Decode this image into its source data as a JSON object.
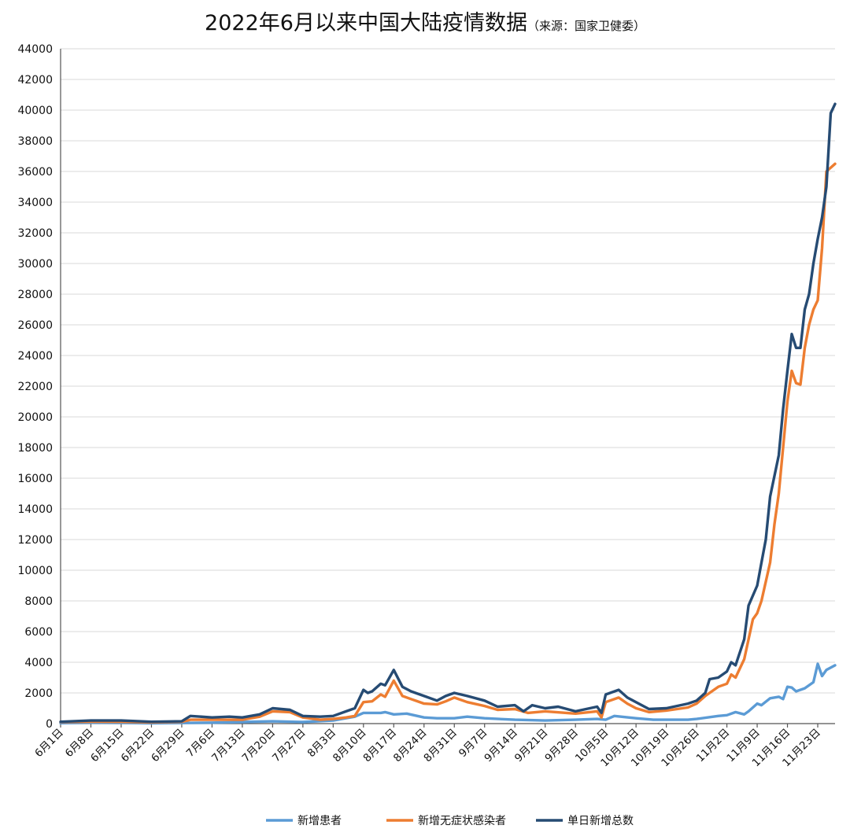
{
  "chart_data": {
    "type": "line",
    "title": "2022年6月以来中国大陆疫情数据",
    "subtitle": "（来源：国家卫健委）",
    "xlabel": "",
    "ylabel": "",
    "ylim": [
      0,
      44000
    ],
    "yticks": [
      0,
      2000,
      4000,
      6000,
      8000,
      10000,
      12000,
      14000,
      16000,
      18000,
      20000,
      22000,
      24000,
      26000,
      28000,
      30000,
      32000,
      34000,
      36000,
      38000,
      40000,
      42000,
      44000
    ],
    "x_start": "2022-06-01",
    "x_end": "2022-11-27",
    "x_tick_labels": [
      "6月1日",
      "6月8日",
      "6月15日",
      "6月22日",
      "6月29日",
      "7月6日",
      "7月13日",
      "7月20日",
      "7月27日",
      "8月3日",
      "8月10日",
      "8月17日",
      "8月24日",
      "8月31日",
      "9月7日",
      "9月14日",
      "9月21日",
      "9月28日",
      "10月5日",
      "10月12日",
      "10月19日",
      "10月26日",
      "11月2日",
      "11月9日",
      "11月16日",
      "11月23日"
    ],
    "grid": true,
    "legend_position": "bottom",
    "series": [
      {
        "name": "新增患者",
        "color": "#5b9bd5",
        "points": [
          [
            "6月1日",
            30
          ],
          [
            "6月8日",
            60
          ],
          [
            "6月15日",
            50
          ],
          [
            "6月22日",
            20
          ],
          [
            "6月29日",
            40
          ],
          [
            "7月6日",
            60
          ],
          [
            "7月13日",
            100
          ],
          [
            "7月20日",
            150
          ],
          [
            "7月27日",
            100
          ],
          [
            "8月3日",
            200
          ],
          [
            "8月5日",
            300
          ],
          [
            "8月8日",
            450
          ],
          [
            "8月10日",
            700
          ],
          [
            "8月14日",
            700
          ],
          [
            "8月15日",
            750
          ],
          [
            "8月17日",
            600
          ],
          [
            "8月20日",
            650
          ],
          [
            "8月24日",
            400
          ],
          [
            "8月27日",
            350
          ],
          [
            "8月31日",
            350
          ],
          [
            "9月3日",
            450
          ],
          [
            "9月7日",
            350
          ],
          [
            "9月14日",
            250
          ],
          [
            "9月21日",
            200
          ],
          [
            "9月28日",
            250
          ],
          [
            "10月3日",
            300
          ],
          [
            "10月5日",
            250
          ],
          [
            "10月7日",
            500
          ],
          [
            "10月12日",
            350
          ],
          [
            "10月16日",
            250
          ],
          [
            "10月19日",
            250
          ],
          [
            "10月24日",
            250
          ],
          [
            "10月26日",
            300
          ],
          [
            "10月31日",
            500
          ],
          [
            "11月2日",
            550
          ],
          [
            "11月4日",
            750
          ],
          [
            "11月6日",
            600
          ],
          [
            "11月7日",
            800
          ],
          [
            "11月9日",
            1300
          ],
          [
            "11月10日",
            1200
          ],
          [
            "11月12日",
            1650
          ],
          [
            "11月14日",
            1750
          ],
          [
            "11月15日",
            1600
          ],
          [
            "11月16日",
            2400
          ],
          [
            "11月17日",
            2350
          ],
          [
            "11月18日",
            2100
          ],
          [
            "11月20日",
            2300
          ],
          [
            "11月22日",
            2700
          ],
          [
            "11月23日",
            3900
          ],
          [
            "11月24日",
            3100
          ],
          [
            "11月25日",
            3500
          ],
          [
            "11月27日",
            3800
          ]
        ]
      },
      {
        "name": "新增无症状感染者",
        "color": "#ed7d31",
        "points": [
          [
            "6月1日",
            100
          ],
          [
            "6月8日",
            130
          ],
          [
            "6月15日",
            120
          ],
          [
            "6月22日",
            80
          ],
          [
            "6月29日",
            120
          ],
          [
            "7月1日",
            250
          ],
          [
            "7月6日",
            250
          ],
          [
            "7月13日",
            250
          ],
          [
            "7月17日",
            450
          ],
          [
            "7月20日",
            800
          ],
          [
            "7月24日",
            750
          ],
          [
            "7月27日",
            400
          ],
          [
            "7月31日",
            250
          ],
          [
            "8月3日",
            300
          ],
          [
            "8月6日",
            400
          ],
          [
            "8月8日",
            500
          ],
          [
            "8月10日",
            1400
          ],
          [
            "8月12日",
            1450
          ],
          [
            "8月14日",
            1900
          ],
          [
            "8月15日",
            1750
          ],
          [
            "8月17日",
            2800
          ],
          [
            "8月19日",
            1800
          ],
          [
            "8月21日",
            1600
          ],
          [
            "8月24日",
            1300
          ],
          [
            "8月27日",
            1250
          ],
          [
            "8月29日",
            1450
          ],
          [
            "8月31日",
            1700
          ],
          [
            "9月3日",
            1400
          ],
          [
            "9月7日",
            1150
          ],
          [
            "9月10日",
            900
          ],
          [
            "9月14日",
            950
          ],
          [
            "9月17日",
            700
          ],
          [
            "9月21日",
            800
          ],
          [
            "9月28日",
            650
          ],
          [
            "10月3日",
            800
          ],
          [
            "10月4日",
            400
          ],
          [
            "10月5日",
            1400
          ],
          [
            "10月8日",
            1700
          ],
          [
            "10月10日",
            1300
          ],
          [
            "10月12日",
            1000
          ],
          [
            "10月15日",
            750
          ],
          [
            "10月19日",
            850
          ],
          [
            "10月24日",
            1050
          ],
          [
            "10月26日",
            1300
          ],
          [
            "10月28日",
            1800
          ],
          [
            "10月31日",
            2400
          ],
          [
            "11月2日",
            2600
          ],
          [
            "11月3日",
            3200
          ],
          [
            "11月4日",
            3000
          ],
          [
            "11月6日",
            4200
          ],
          [
            "11月7日",
            5500
          ],
          [
            "11月8日",
            6800
          ],
          [
            "11月9日",
            7200
          ],
          [
            "11月10日",
            8000
          ],
          [
            "11月12日",
            10500
          ],
          [
            "11月13日",
            13000
          ],
          [
            "11月14日",
            15000
          ],
          [
            "11月15日",
            18000
          ],
          [
            "11月16日",
            21000
          ],
          [
            "11月17日",
            23000
          ],
          [
            "11月18日",
            22200
          ],
          [
            "11月19日",
            22100
          ],
          [
            "11月20日",
            24500
          ],
          [
            "11月21日",
            26000
          ],
          [
            "11月22日",
            27000
          ],
          [
            "11月23日",
            27600
          ],
          [
            "11月24日",
            31000
          ],
          [
            "11月25日",
            36000
          ],
          [
            "11月27日",
            36500
          ]
        ]
      },
      {
        "name": "单日新增总数",
        "color": "#264b73",
        "points": [
          [
            "6月1日",
            120
          ],
          [
            "6月8日",
            200
          ],
          [
            "6月15日",
            200
          ],
          [
            "6月22日",
            120
          ],
          [
            "6月29日",
            150
          ],
          [
            "7月1日",
            500
          ],
          [
            "7月6日",
            400
          ],
          [
            "7月10日",
            450
          ],
          [
            "7月13日",
            400
          ],
          [
            "7月17日",
            600
          ],
          [
            "7月20日",
            1000
          ],
          [
            "7月24日",
            900
          ],
          [
            "7月27日",
            500
          ],
          [
            "7月31日",
            450
          ],
          [
            "8月3日",
            500
          ],
          [
            "8月6日",
            800
          ],
          [
            "8月8日",
            1000
          ],
          [
            "8月10日",
            2200
          ],
          [
            "8月11日",
            2000
          ],
          [
            "8月12日",
            2100
          ],
          [
            "8月14日",
            2600
          ],
          [
            "8月15日",
            2500
          ],
          [
            "8月17日",
            3500
          ],
          [
            "8月19日",
            2400
          ],
          [
            "8月21日",
            2100
          ],
          [
            "8月24日",
            1800
          ],
          [
            "8月27日",
            1500
          ],
          [
            "8月29日",
            1800
          ],
          [
            "8月31日",
            2000
          ],
          [
            "9月3日",
            1800
          ],
          [
            "9月7日",
            1500
          ],
          [
            "9月10日",
            1100
          ],
          [
            "9月14日",
            1200
          ],
          [
            "9月16日",
            800
          ],
          [
            "9月18日",
            1200
          ],
          [
            "9月21日",
            1000
          ],
          [
            "9月24日",
            1100
          ],
          [
            "9月28日",
            800
          ],
          [
            "10月3日",
            1100
          ],
          [
            "10月4日",
            700
          ],
          [
            "10月5日",
            1900
          ],
          [
            "10月8日",
            2200
          ],
          [
            "10月10日",
            1700
          ],
          [
            "10月12日",
            1400
          ],
          [
            "10月15日",
            950
          ],
          [
            "10月19日",
            1000
          ],
          [
            "10月24日",
            1300
          ],
          [
            "10月26日",
            1500
          ],
          [
            "10月28日",
            2000
          ],
          [
            "10月29日",
            2900
          ],
          [
            "10月31日",
            3000
          ],
          [
            "11月2日",
            3400
          ],
          [
            "11月3日",
            4000
          ],
          [
            "11月4日",
            3800
          ],
          [
            "11月6日",
            5500
          ],
          [
            "11月7日",
            7700
          ],
          [
            "11月9日",
            9000
          ],
          [
            "11月10日",
            10500
          ],
          [
            "11月11日",
            12000
          ],
          [
            "11月12日",
            14800
          ],
          [
            "11月14日",
            17500
          ],
          [
            "11月15日",
            20500
          ],
          [
            "11月16日",
            23000
          ],
          [
            "11月17日",
            25400
          ],
          [
            "11月18日",
            24500
          ],
          [
            "11月19日",
            24500
          ],
          [
            "11月20日",
            27000
          ],
          [
            "11月21日",
            28000
          ],
          [
            "11月22日",
            30000
          ],
          [
            "11月23日",
            31600
          ],
          [
            "11月24日",
            33000
          ],
          [
            "11月25日",
            35000
          ],
          [
            "11月26日",
            39800
          ],
          [
            "11月27日",
            40400
          ]
        ]
      }
    ]
  }
}
